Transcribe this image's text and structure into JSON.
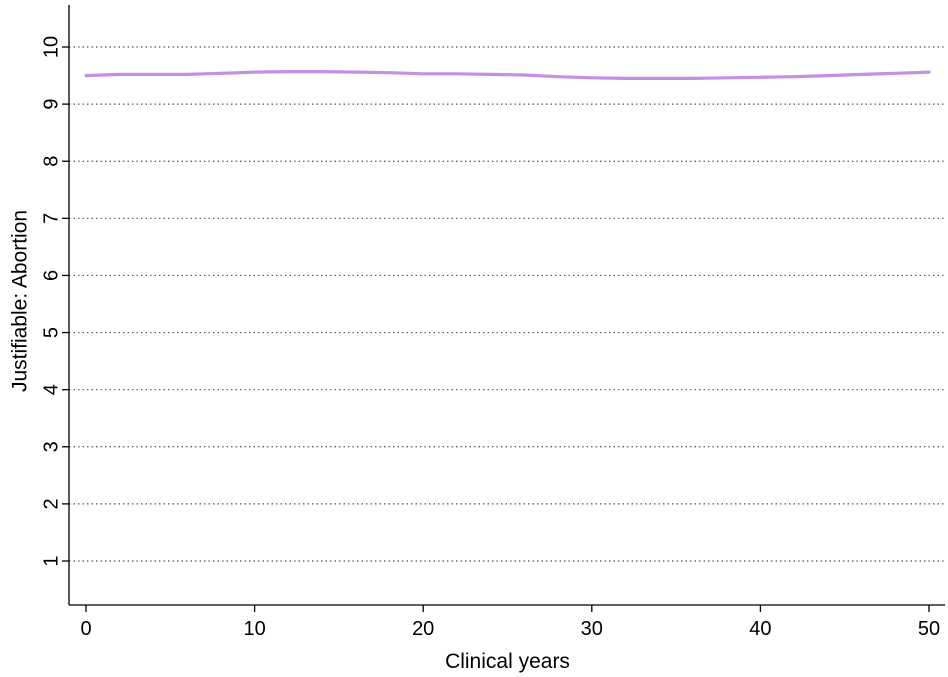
{
  "chart_data": {
    "type": "line",
    "title": "",
    "xlabel": "Clinical years",
    "ylabel": "Justifiable: Abortion",
    "xlim": [
      0,
      50
    ],
    "ylim": [
      1,
      10
    ],
    "x_ticks": [
      0,
      10,
      20,
      30,
      40,
      50
    ],
    "y_ticks": [
      1,
      2,
      3,
      4,
      5,
      6,
      7,
      8,
      9,
      10
    ],
    "grid": "horizontal dotted",
    "legend": "none",
    "series": [
      {
        "color": "#c58fe6",
        "x": [
          0,
          2,
          4,
          6,
          8,
          10,
          12,
          14,
          16,
          18,
          20,
          22,
          24,
          26,
          28,
          30,
          32,
          34,
          36,
          38,
          40,
          42,
          44,
          46,
          48,
          50
        ],
        "y": [
          9.5,
          9.52,
          9.52,
          9.52,
          9.54,
          9.56,
          9.57,
          9.57,
          9.56,
          9.55,
          9.53,
          9.53,
          9.52,
          9.51,
          9.48,
          9.46,
          9.45,
          9.45,
          9.45,
          9.46,
          9.47,
          9.48,
          9.5,
          9.52,
          9.54,
          9.56
        ]
      }
    ]
  }
}
